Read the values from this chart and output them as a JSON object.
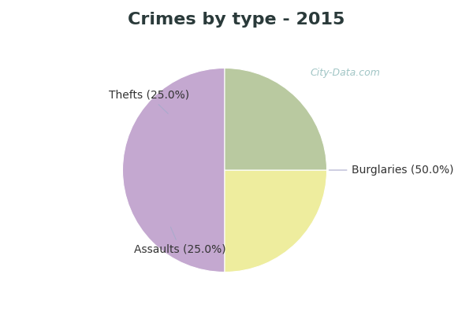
{
  "title": "Crimes by type - 2015",
  "slices": [
    {
      "label": "Burglaries (50.0%)",
      "value": 50.0,
      "color": "#C4A8D0"
    },
    {
      "label": "Thefts (25.0%)",
      "value": 25.0,
      "color": "#EEED9E"
    },
    {
      "label": "Assaults (25.0%)",
      "value": 25.0,
      "color": "#B9C9A0"
    }
  ],
  "background_top_color": "#00E5EE",
  "background_main_color": "#C8E8DC",
  "title_fontsize": 16,
  "title_color": "#2A3A3A",
  "label_fontsize": 10,
  "label_color": "#333333",
  "watermark": "City-Data.com",
  "watermark_color": "#90BBBB",
  "startangle": 90,
  "top_bar_height": 0.115
}
